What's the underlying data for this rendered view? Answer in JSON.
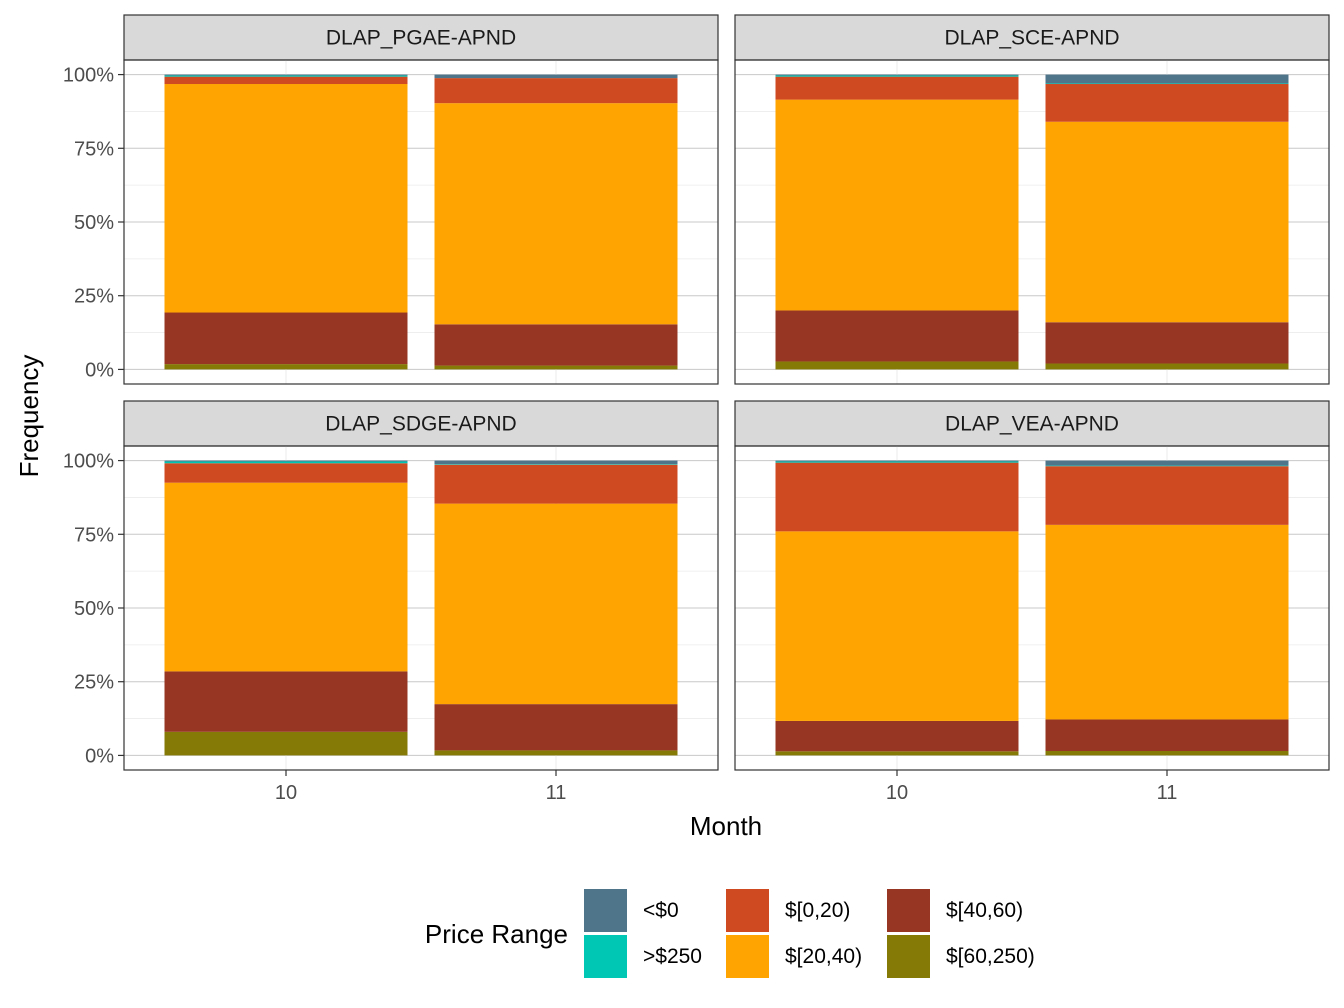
{
  "chart_data": {
    "type": "bar",
    "stacked": true,
    "position": "fill",
    "xlabel": "Month",
    "ylabel": "Frequency",
    "ylim": [
      0,
      1
    ],
    "ytick_labels": [
      "0%",
      "25%",
      "50%",
      "75%",
      "100%"
    ],
    "categories": [
      "10",
      "11"
    ],
    "legend": {
      "title": "Price Range",
      "placement": "bottom",
      "entries": [
        "<$0",
        ">$250",
        "$[0,20)",
        "$[20,40)",
        "$[40,60)",
        "$[60,250)"
      ]
    },
    "colors": {
      "<$0": "#4f758b",
      ">$250": "#00c7b4",
      "$[0,20)": "#d04a21",
      "$[20,40)": "#ffa400",
      "$[40,60)": "#973723",
      "$[60,250)": "#857a05"
    },
    "stack_order_bottom_to_top": [
      "$[60,250)",
      "$[40,60)",
      "$[20,40)",
      "$[0,20)",
      ">$250",
      "<$0"
    ],
    "panels": [
      {
        "title": "DLAP_PGAE-APND",
        "series": [
          {
            "name": "<$0",
            "values": [
              0.003,
              0.012
            ]
          },
          {
            "name": ">$250",
            "values": [
              0.004,
              0.0
            ]
          },
          {
            "name": "$[0,20)",
            "values": [
              0.025,
              0.085
            ]
          },
          {
            "name": "$[20,40)",
            "values": [
              0.775,
              0.75
            ]
          },
          {
            "name": "$[40,60)",
            "values": [
              0.175,
              0.14
            ]
          },
          {
            "name": "$[60,250)",
            "values": [
              0.018,
              0.013
            ]
          }
        ]
      },
      {
        "title": "DLAP_SCE-APND",
        "series": [
          {
            "name": "<$0",
            "values": [
              0.003,
              0.03
            ]
          },
          {
            "name": ">$250",
            "values": [
              0.004,
              0.002
            ]
          },
          {
            "name": "$[0,20)",
            "values": [
              0.078,
              0.128
            ]
          },
          {
            "name": "$[20,40)",
            "values": [
              0.715,
              0.68
            ]
          },
          {
            "name": "$[40,60)",
            "values": [
              0.173,
              0.14
            ]
          },
          {
            "name": "$[60,250)",
            "values": [
              0.027,
              0.02
            ]
          }
        ]
      },
      {
        "title": "DLAP_SDGE-APND",
        "series": [
          {
            "name": "<$0",
            "values": [
              0.003,
              0.012
            ]
          },
          {
            "name": ">$250",
            "values": [
              0.006,
              0.002
            ]
          },
          {
            "name": "$[0,20)",
            "values": [
              0.066,
              0.132
            ]
          },
          {
            "name": "$[20,40)",
            "values": [
              0.64,
              0.68
            ]
          },
          {
            "name": "$[40,60)",
            "values": [
              0.205,
              0.157
            ]
          },
          {
            "name": "$[60,250)",
            "values": [
              0.08,
              0.017
            ]
          }
        ]
      },
      {
        "title": "DLAP_VEA-APND",
        "series": [
          {
            "name": "<$0",
            "values": [
              0.003,
              0.017
            ]
          },
          {
            "name": ">$250",
            "values": [
              0.004,
              0.002
            ]
          },
          {
            "name": "$[0,20)",
            "values": [
              0.233,
              0.199
            ]
          },
          {
            "name": "$[20,40)",
            "values": [
              0.643,
              0.66
            ]
          },
          {
            "name": "$[40,60)",
            "values": [
              0.103,
              0.107
            ]
          },
          {
            "name": "$[60,250)",
            "values": [
              0.014,
              0.015
            ]
          }
        ]
      }
    ]
  }
}
